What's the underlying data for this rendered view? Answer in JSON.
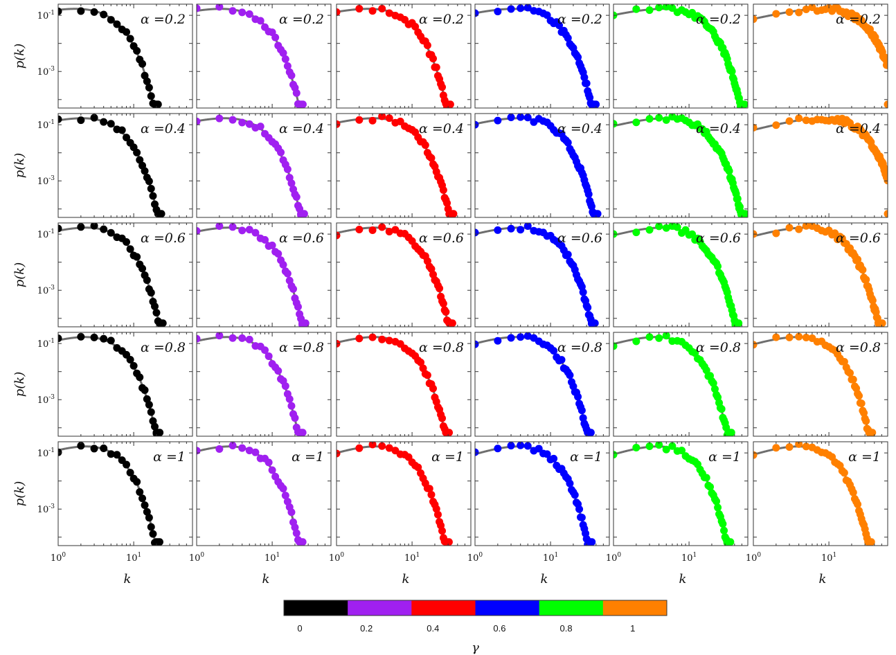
{
  "chart_data": {
    "type": "scatter",
    "grid": false,
    "x_scale": "log",
    "y_scale": "log",
    "xlim": [
      1,
      60
    ],
    "ylim": [
      5e-05,
      0.25
    ],
    "xlabel": "k",
    "ylabel": "p(k)",
    "x_ticks": [
      {
        "base": "10",
        "exp": "0",
        "value": 1
      },
      {
        "base": "10",
        "exp": "1",
        "value": 10
      }
    ],
    "y_ticks": [
      {
        "base": "10",
        "exp": "-1",
        "value": 0.1
      },
      {
        "base": "10",
        "exp": "-3",
        "value": 0.001
      }
    ],
    "row_labels": [
      "α =0.2",
      "α =0.4",
      "α =0.6",
      "α =0.8",
      "α =1"
    ],
    "panel_params": {
      "alphas": [
        0.2,
        0.4,
        0.6,
        0.8,
        1
      ],
      "gammas": [
        0,
        0.2,
        0.4,
        0.6,
        0.8,
        1
      ],
      "cutoff_k": [
        [
          12.5,
          15.5,
          19.5,
          24,
          33,
          58
        ],
        [
          14,
          16,
          21,
          25,
          33,
          55
        ],
        [
          14.5,
          16.5,
          20,
          23,
          27,
          30
        ],
        [
          13,
          14.5,
          18,
          20,
          21,
          22
        ],
        [
          12.5,
          14.5,
          17.5,
          20,
          20.5,
          21
        ]
      ]
    },
    "fit_line_color": "#6e6e6e",
    "colorbar": {
      "label": "γ",
      "colors": [
        "#000000",
        "#a020f0",
        "#ff0000",
        "#0000ff",
        "#00ff00",
        "#ff8000"
      ],
      "tick_labels": [
        "0",
        "0.2",
        "0.4",
        "0.6",
        "0.8",
        "1"
      ]
    }
  }
}
